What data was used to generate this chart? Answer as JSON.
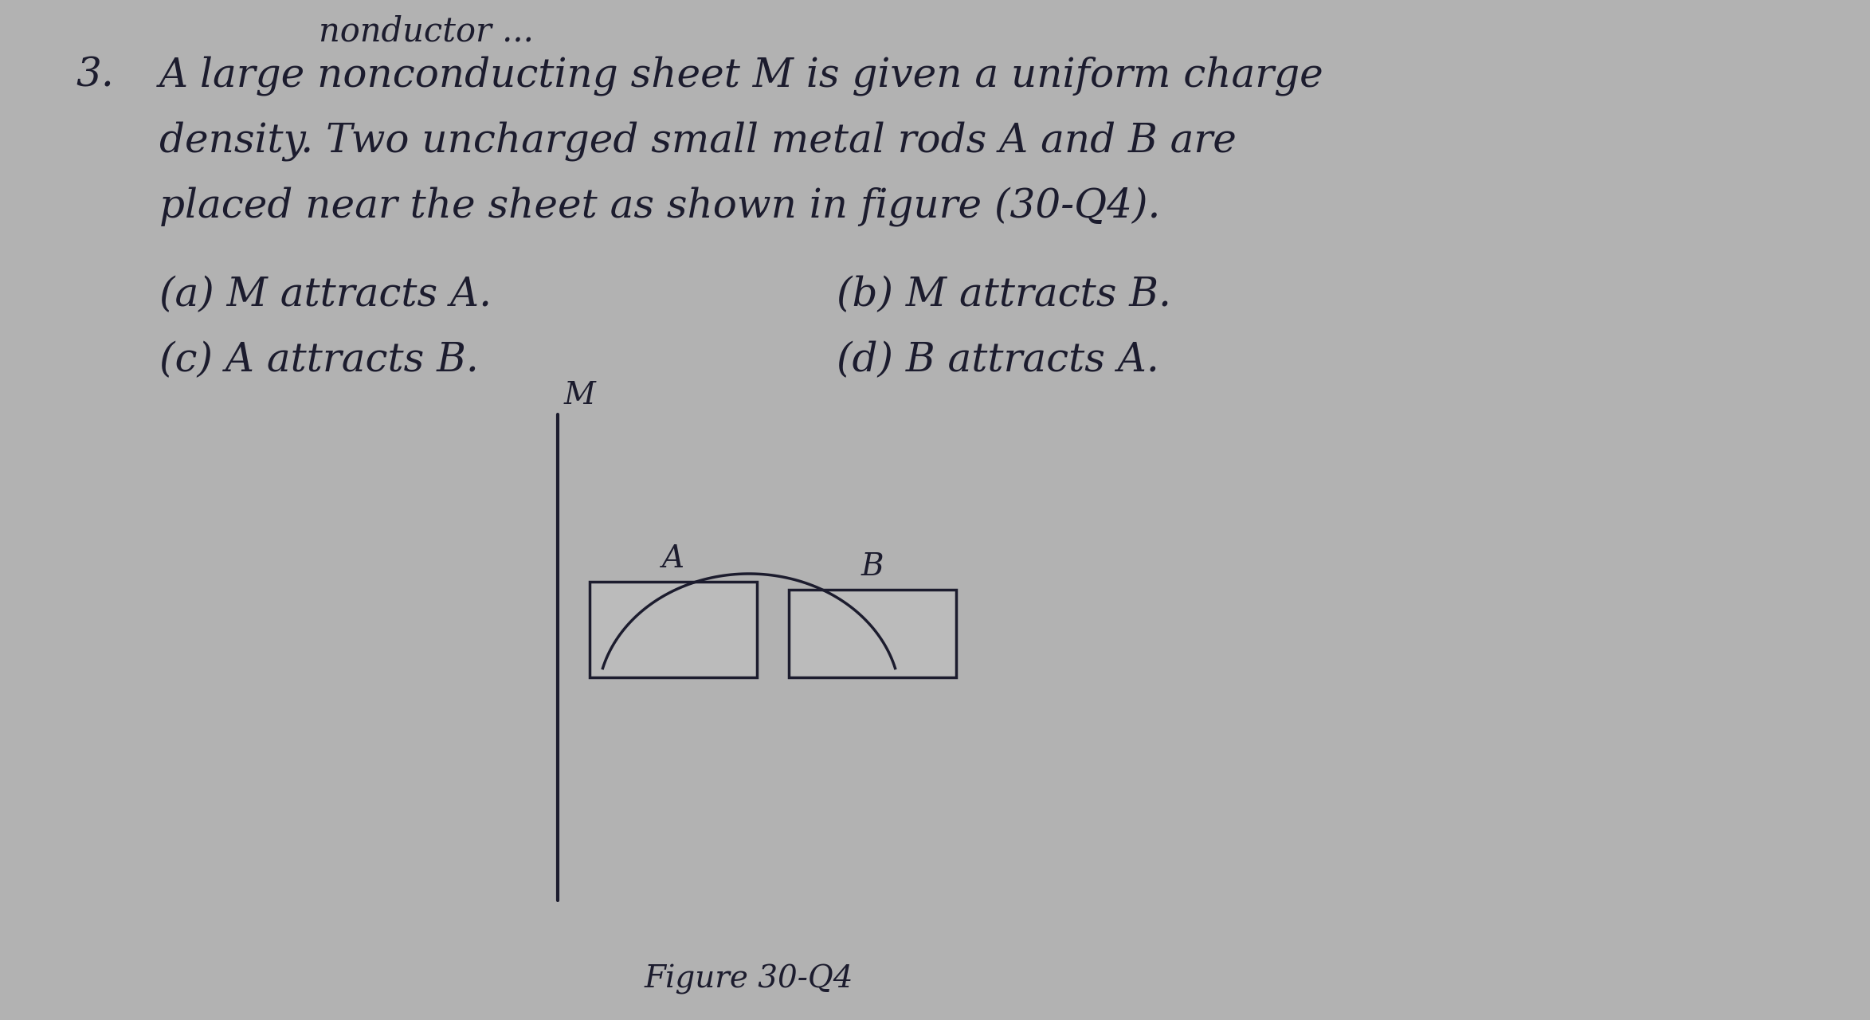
{
  "bg_color": "#b2b2b2",
  "text_color": "#1c1c2e",
  "question_number": "3.",
  "line1": "A large nonconducting sheet M is given a uniform charge",
  "line2": "density. Two uncharged small metal rods A and B are",
  "line3": "placed near the sheet as shown in figure (30-Q4).",
  "option_a": "(a) M attracts A.",
  "option_b": "(b) M attracts B.",
  "option_c": "(c) A attracts B.",
  "option_d": "(d) B attracts A.",
  "header_partial": "nonductor ...",
  "figure_label": "Figure 30-Q4",
  "sheet_label": "M",
  "rod_a_label": "A",
  "rod_b_label": "B",
  "font_size_text": 36,
  "font_size_label": 28,
  "font_size_header": 30,
  "font_size_fig": 28
}
